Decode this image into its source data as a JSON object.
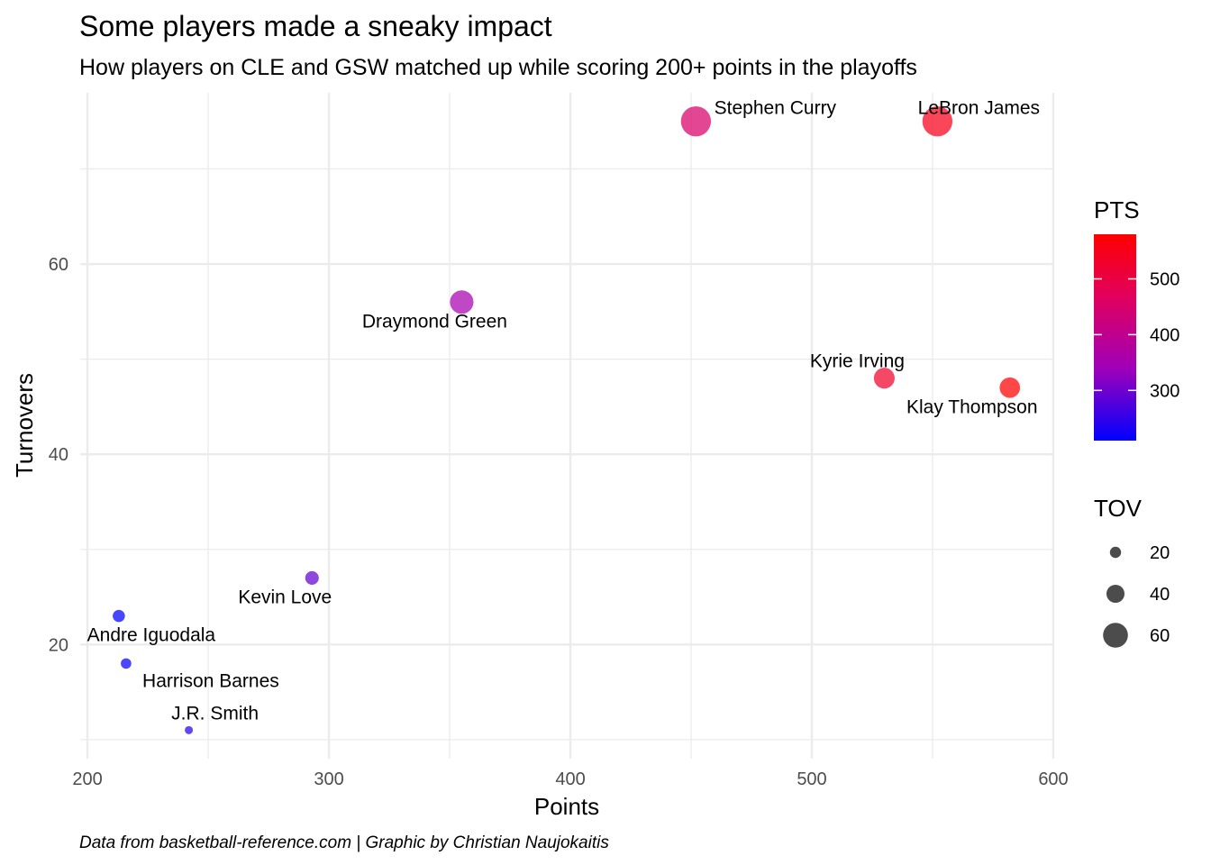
{
  "chart_data": {
    "type": "scatter",
    "title": "Some players made a sneaky impact",
    "subtitle": "How players on CLE and GSW matched up while scoring 200+ points in the playoffs",
    "caption": "Data from basketball-reference.com | Graphic by Christian Naujokaitis",
    "xlabel": "Points",
    "ylabel": "Turnovers",
    "xlim": [
      197,
      600
    ],
    "ylim": [
      8,
      78
    ],
    "xticks": [
      200,
      300,
      400,
      500,
      600
    ],
    "yticks": [
      20,
      40,
      60
    ],
    "grid": true,
    "color_scale": {
      "low": "#0000ff",
      "high": "#ff0000",
      "min": 213,
      "max": 582
    },
    "points": [
      {
        "name": "Stephen Curry",
        "pts": 452,
        "tov": 75
      },
      {
        "name": "LeBron James",
        "pts": 552,
        "tov": 75
      },
      {
        "name": "Draymond Green",
        "pts": 355,
        "tov": 56
      },
      {
        "name": "Kyrie Irving",
        "pts": 530,
        "tov": 48
      },
      {
        "name": "Klay Thompson",
        "pts": 582,
        "tov": 47
      },
      {
        "name": "Kevin Love",
        "pts": 293,
        "tov": 27
      },
      {
        "name": "Andre Iguodala",
        "pts": 213,
        "tov": 23
      },
      {
        "name": "Harrison Barnes",
        "pts": 216,
        "tov": 18
      },
      {
        "name": "J.R. Smith",
        "pts": 242,
        "tov": 11
      }
    ],
    "legends": {
      "color": {
        "title": "PTS",
        "breaks": [
          300,
          400,
          500
        ]
      },
      "size": {
        "title": "TOV",
        "breaks": [
          20,
          40,
          60
        ]
      }
    }
  }
}
